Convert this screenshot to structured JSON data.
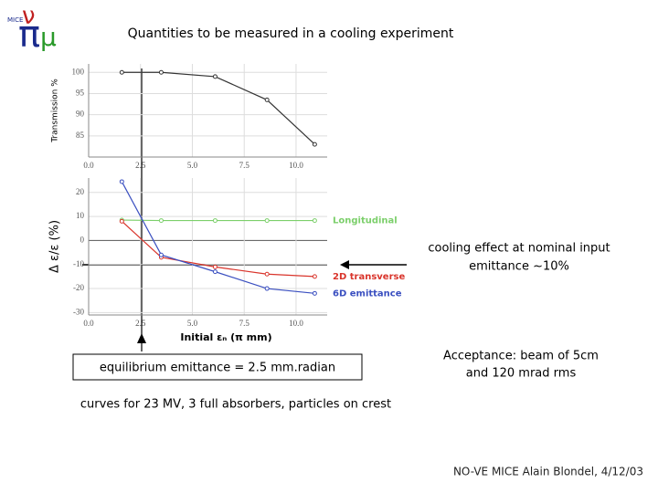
{
  "chart_data": [
    {
      "type": "line",
      "ylabel": "Transmission %",
      "x": [
        1.6,
        3.5,
        6.1,
        8.6,
        10.9
      ],
      "series": [
        {
          "name": null,
          "color": "#333333",
          "values": [
            100,
            100,
            99,
            93.5,
            83
          ]
        }
      ],
      "xlim": [
        0,
        11.5
      ],
      "ylim": [
        80,
        102
      ],
      "xticks": [
        {
          "value": 0,
          "label": "0.0"
        },
        {
          "value": 2.5,
          "label": "2.5"
        },
        {
          "value": 5,
          "label": "5.0"
        },
        {
          "value": 7.5,
          "label": "7.5"
        },
        {
          "value": 10,
          "label": "10.0"
        }
      ],
      "yticks": [
        85,
        90,
        95,
        100
      ],
      "grid": true
    },
    {
      "type": "line",
      "ylabel": "Δ ε/ε   (%)",
      "xlabel": "Initial εₙ   (π mm)",
      "x": [
        1.6,
        3.5,
        6.1,
        8.6,
        10.9
      ],
      "series": [
        {
          "name": "Longitudinal",
          "color": "#7ccf6b",
          "values": [
            8.5,
            8.3,
            8.3,
            8.3,
            8.3
          ]
        },
        {
          "name": "2D transverse",
          "color": "#d9342b",
          "values": [
            8,
            -7,
            -11,
            -14,
            -15
          ]
        },
        {
          "name": "6D emittance",
          "color": "#3a4fc0",
          "values": [
            24.5,
            -6,
            -13,
            -20,
            -22
          ]
        }
      ],
      "xlim": [
        0,
        11.5
      ],
      "ylim": [
        -31,
        26
      ],
      "xticks": [
        {
          "value": 0,
          "label": "0.0"
        },
        {
          "value": 2.5,
          "label": "2.5"
        },
        {
          "value": 5,
          "label": "5.0"
        },
        {
          "value": 7.5,
          "label": "7.5"
        },
        {
          "value": 10,
          "label": "10.0"
        }
      ],
      "yticks": [
        -30,
        -20,
        -10,
        0,
        10,
        20
      ],
      "grid": true
    }
  ],
  "title": "Quantities to be measured in a cooling experiment",
  "logo": {
    "pi": "π",
    "mu": "μ",
    "nu": "ν",
    "name": "MICE"
  },
  "cooling_note": [
    "cooling effect at nominal input",
    "emittance ~10%"
  ],
  "equilibrium_note": "equilibrium emittance = 2.5 mm.radian",
  "acceptance_note": [
    "Acceptance: beam of 5cm",
    "and 120 mrad  rms"
  ],
  "curves_note": "curves for 23 MV, 3 full absorbers, particles on crest",
  "footer": "NO-VE  MICE  Alain Blondel, 4/12/03"
}
